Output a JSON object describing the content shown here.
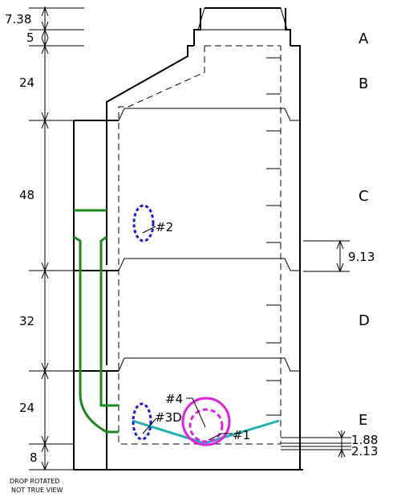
{
  "dimensions": {
    "d1": "7.38",
    "d2": "5",
    "d3": "24",
    "d4": "48",
    "d5": "32",
    "d6": "24",
    "d7": "8",
    "d8": "9.13",
    "d9": "1.88",
    "d10": "2.13"
  },
  "sections": [
    "A",
    "B",
    "C",
    "D",
    "E"
  ],
  "labels": {
    "hole2": "#2",
    "hole3d": "#3D",
    "hole4": "#4",
    "hole1": "#1"
  },
  "note": {
    "line1": "DROP ROTATED",
    "line2": "NOT TRUE VIEW"
  },
  "colors": {
    "structure": "#000000",
    "drop_pipe": "#1a8a1a",
    "blue_opening": "#1a1adc",
    "magenta_opening": "#e020e0",
    "pipe_line": "#20b0b0"
  }
}
